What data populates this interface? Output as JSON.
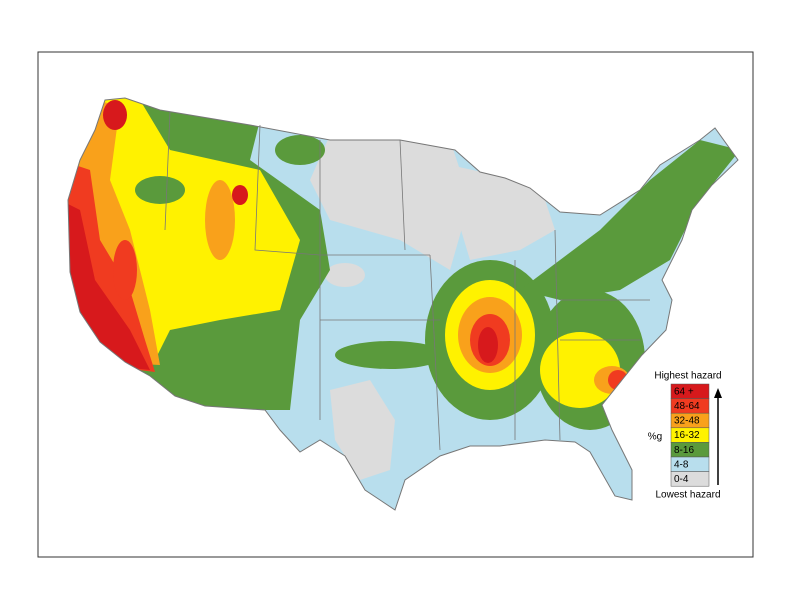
{
  "legend": {
    "top_label": "Highest hazard",
    "bottom_label": "Lowest hazard",
    "unit": "%g",
    "items": [
      {
        "label": "64 +",
        "color": "#d7191c"
      },
      {
        "label": "48-64",
        "color": "#f03b20"
      },
      {
        "label": "32-48",
        "color": "#f9a11b"
      },
      {
        "label": "16-32",
        "color": "#fff200"
      },
      {
        "label": "8-16",
        "color": "#5a9a3c"
      },
      {
        "label": "4-8",
        "color": "#b8deed"
      },
      {
        "label": "0-4",
        "color": "#dcdcdc"
      }
    ]
  }
}
